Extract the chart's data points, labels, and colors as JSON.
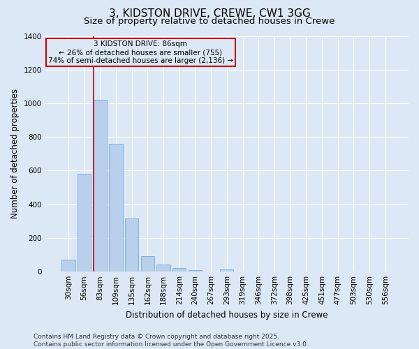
{
  "title_line1": "3, KIDSTON DRIVE, CREWE, CW1 3GG",
  "title_line2": "Size of property relative to detached houses in Crewe",
  "xlabel": "Distribution of detached houses by size in Crewe",
  "ylabel": "Number of detached properties",
  "categories": [
    "30sqm",
    "56sqm",
    "83sqm",
    "109sqm",
    "135sqm",
    "162sqm",
    "188sqm",
    "214sqm",
    "240sqm",
    "267sqm",
    "293sqm",
    "319sqm",
    "346sqm",
    "372sqm",
    "398sqm",
    "425sqm",
    "451sqm",
    "477sqm",
    "503sqm",
    "530sqm",
    "556sqm"
  ],
  "values": [
    70,
    580,
    1020,
    760,
    315,
    90,
    42,
    22,
    10,
    0,
    15,
    0,
    0,
    0,
    0,
    0,
    0,
    0,
    0,
    0,
    0
  ],
  "bar_color": "#b8d0eb",
  "bar_edge_color": "#7aabda",
  "vline_x_index": 2,
  "vline_color": "#cc0000",
  "ylim": [
    0,
    1400
  ],
  "yticks": [
    0,
    200,
    400,
    600,
    800,
    1000,
    1200,
    1400
  ],
  "annotation_text": "3 KIDSTON DRIVE: 86sqm\n← 26% of detached houses are smaller (755)\n74% of semi-detached houses are larger (2,136) →",
  "annotation_box_color": "#cc0000",
  "background_color": "#dce8f5",
  "grid_color": "#ffffff",
  "footnote": "Contains HM Land Registry data © Crown copyright and database right 2025.\nContains public sector information licensed under the Open Government Licence v3.0.",
  "title_fontsize": 11,
  "subtitle_fontsize": 9.5,
  "label_fontsize": 8.5,
  "tick_fontsize": 7.5,
  "annot_fontsize": 7.5,
  "footnote_fontsize": 6.5
}
